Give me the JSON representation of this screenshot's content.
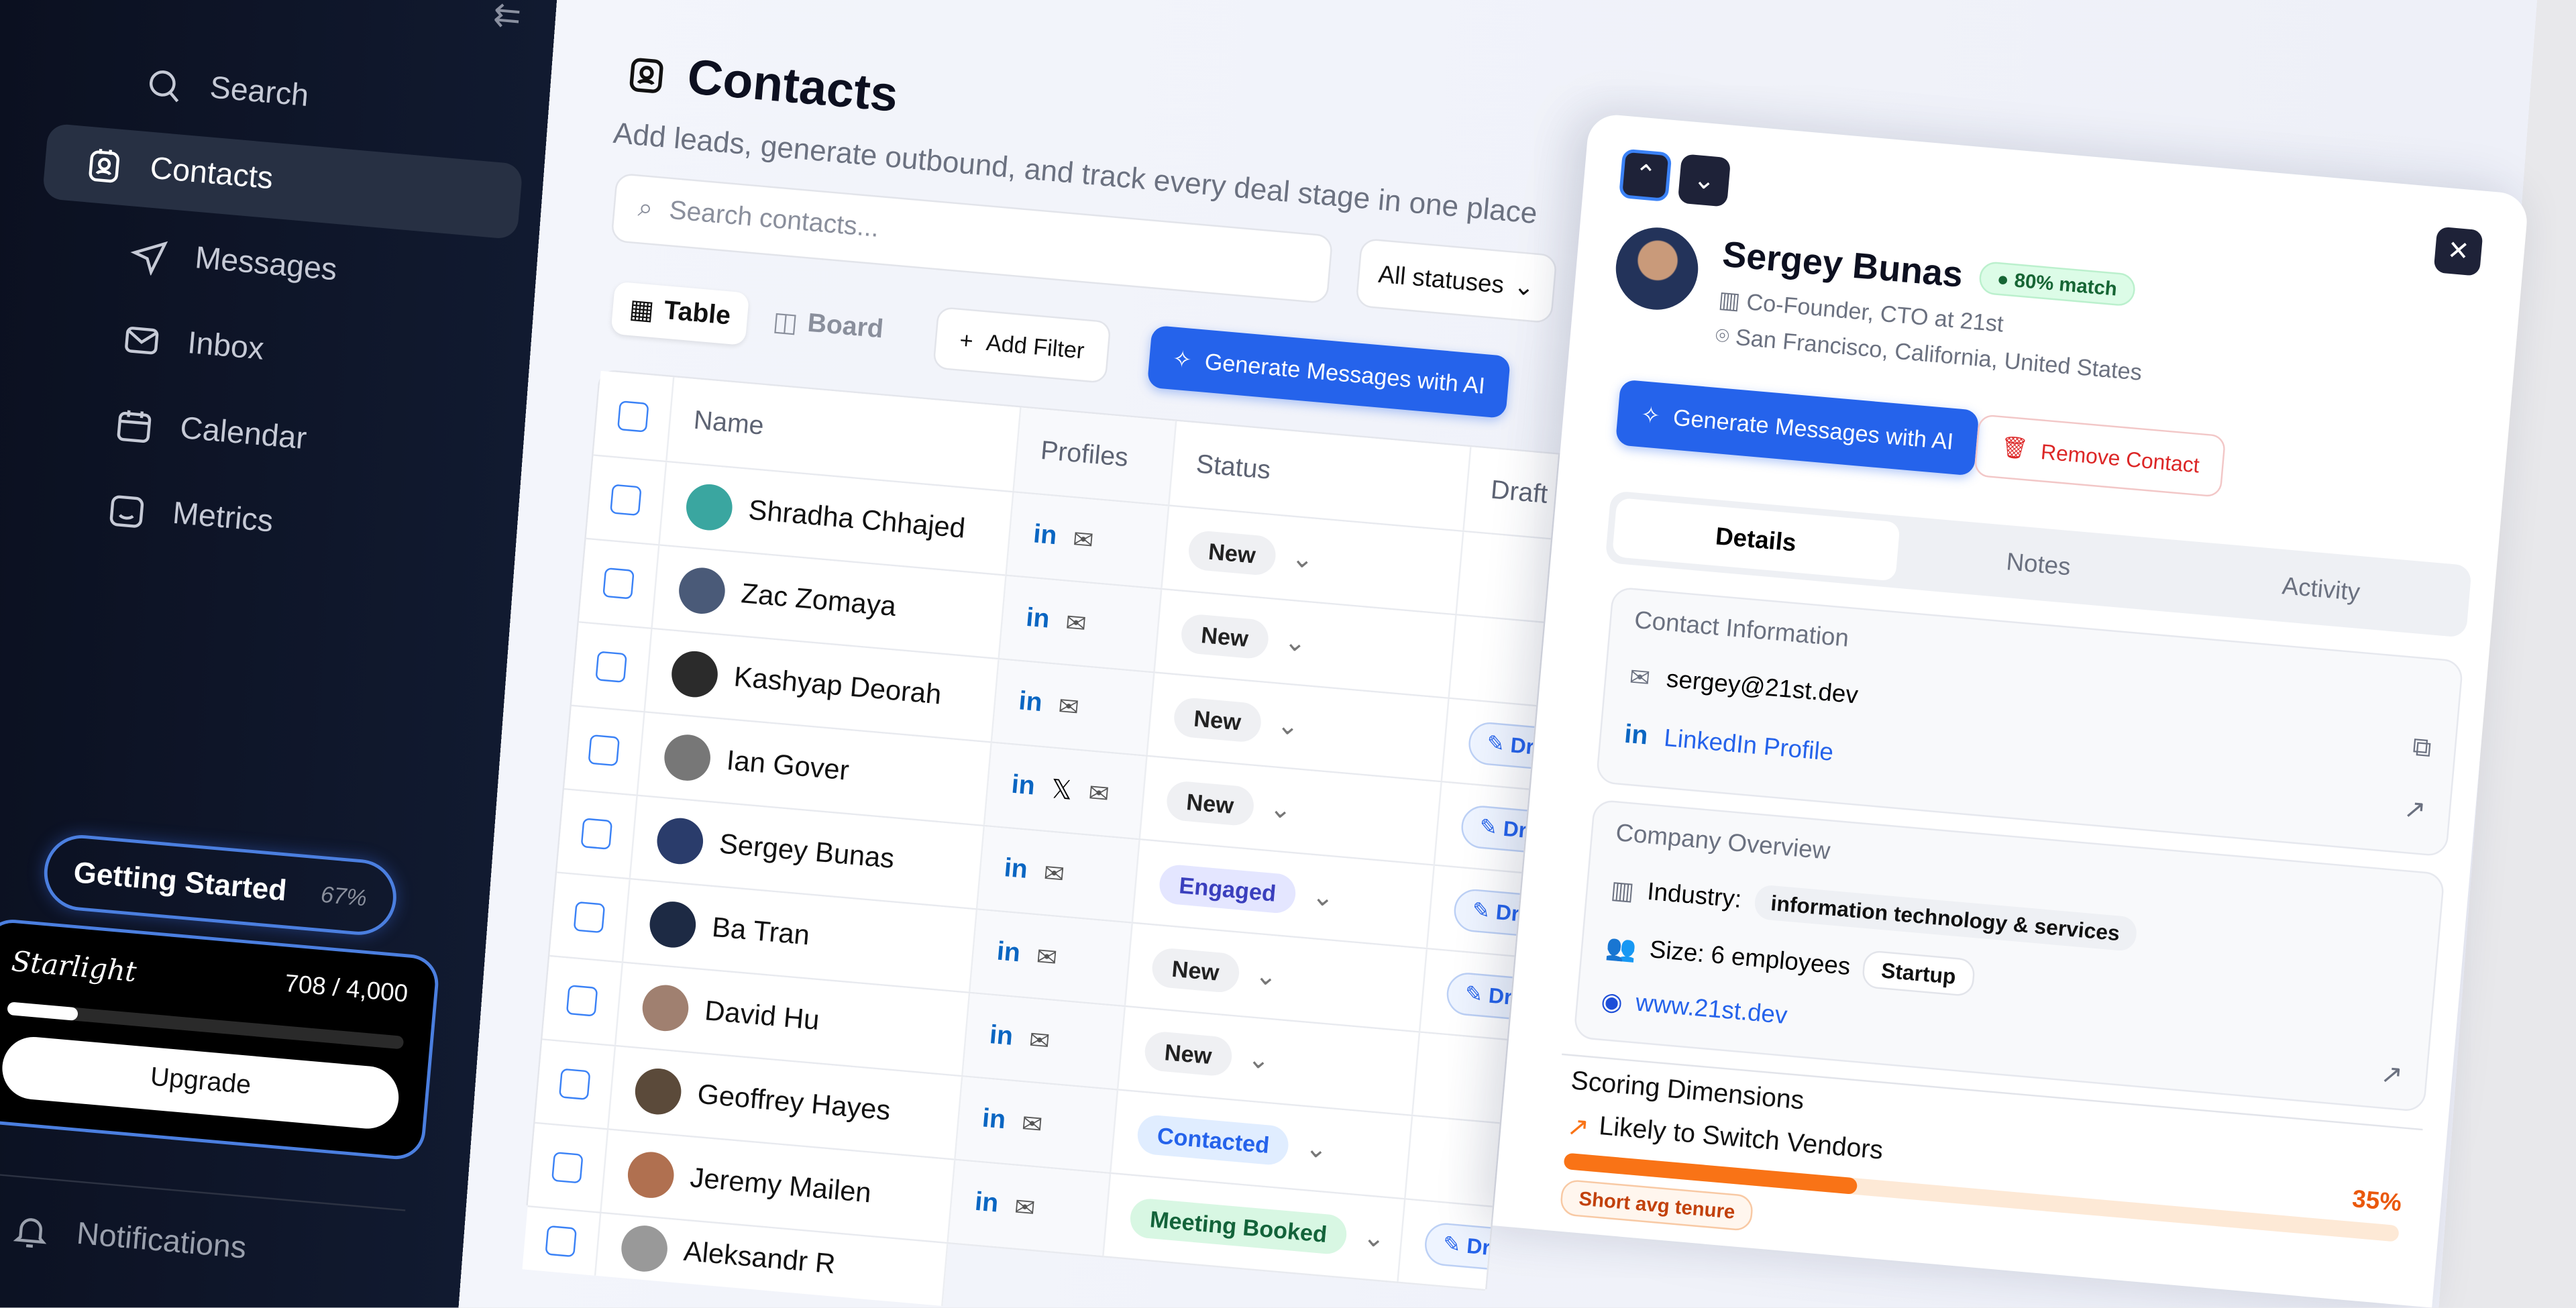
{
  "sidebar": {
    "items": [
      {
        "label": "Search",
        "icon": "search-icon"
      },
      {
        "label": "Contacts",
        "icon": "contacts-icon",
        "active": true
      },
      {
        "label": "Messages",
        "icon": "send-icon"
      },
      {
        "label": "Inbox",
        "icon": "mail-icon"
      },
      {
        "label": "Calendar",
        "icon": "calendar-icon"
      },
      {
        "label": "Metrics",
        "icon": "metrics-icon"
      }
    ],
    "getting_started": {
      "label": "Getting Started",
      "percent": "67%"
    },
    "plan": {
      "name": "Starlight",
      "usage": "708 / 4,000",
      "used": 708,
      "limit": 4000,
      "upgrade": "Upgrade"
    },
    "notifications": "Notifications"
  },
  "header": {
    "title": "Contacts",
    "subtitle": "Add leads, generate outbound, and track every deal stage in one place"
  },
  "toolbar": {
    "search_placeholder": "Search contacts...",
    "status_filter": "All statuses",
    "view_table": "Table",
    "view_board": "Board",
    "add_filter": "Add Filter",
    "generate": "Generate Messages with AI"
  },
  "table": {
    "columns": [
      "Name",
      "Profiles",
      "Status",
      "Draft"
    ],
    "rows": [
      {
        "name": "Shradha Chhajed",
        "profiles": [
          "linkedin",
          "email"
        ],
        "status": "New",
        "draft": "",
        "avatar": "#3aa6a0"
      },
      {
        "name": "Zac Zomaya",
        "profiles": [
          "linkedin",
          "email"
        ],
        "status": "New",
        "draft": "",
        "avatar": "#4a5a78"
      },
      {
        "name": "Kashyap Deorah",
        "profiles": [
          "linkedin",
          "email"
        ],
        "status": "New",
        "draft": "Draft",
        "avatar": "#2b2b2b"
      },
      {
        "name": "Ian Gover",
        "profiles": [
          "linkedin",
          "x",
          "email"
        ],
        "status": "New",
        "draft": "Draft",
        "avatar": "#777"
      },
      {
        "name": "Sergey Bunas",
        "profiles": [
          "linkedin",
          "email"
        ],
        "status": "Engaged",
        "draft": "Draft",
        "avatar": "#2a3c6b"
      },
      {
        "name": "Ba Tran",
        "profiles": [
          "linkedin",
          "email"
        ],
        "status": "New",
        "draft": "Draft",
        "avatar": "#1d2a44"
      },
      {
        "name": "David Hu",
        "profiles": [
          "linkedin",
          "email"
        ],
        "status": "New",
        "draft": "",
        "avatar": "#a08070"
      },
      {
        "name": "Geoffrey Hayes",
        "profiles": [
          "linkedin",
          "email"
        ],
        "status": "Contacted",
        "draft": "",
        "avatar": "#5b4a3a"
      },
      {
        "name": "Jeremy Mailen",
        "profiles": [
          "linkedin",
          "email"
        ],
        "status": "Meeting Booked",
        "draft": "Draft",
        "avatar": "#b07050"
      },
      {
        "name": "Aleksandr R",
        "profiles": [],
        "status": "",
        "draft": "",
        "avatar": "#999"
      }
    ]
  },
  "status_colors": {
    "New": [
      "#eff0f3",
      "#222"
    ],
    "Engaged": [
      "#e4e6ff",
      "#3a3fbd"
    ],
    "Contacted": [
      "#e0edff",
      "#2563eb"
    ],
    "Meeting Booked": [
      "#d8f7e3",
      "#13633a"
    ]
  },
  "detail": {
    "name": "Sergey Bunas",
    "match": "80% match",
    "role": "Co-Founder, CTO at 21st",
    "location": "San Francisco, California, United States",
    "generate": "Generate Messages with AI",
    "remove": "Remove Contact",
    "tabs": [
      "Details",
      "Notes",
      "Activity"
    ],
    "contact": {
      "heading": "Contact Information",
      "email": "sergey@21st.dev",
      "linkedin": "LinkedIn Profile"
    },
    "company": {
      "heading": "Company Overview",
      "industry_label": "Industry:",
      "industry": "information technology & services",
      "size": "Size: 6 employees",
      "stage": "Startup",
      "website": "www.21st.dev"
    },
    "scoring": {
      "heading": "Scoring Dimensions",
      "dimension": "Likely to Switch Vendors",
      "percent": "35%",
      "value": 35,
      "chips": [
        "Short avg tenure"
      ]
    }
  },
  "colors": {
    "accent": "#2563eb",
    "orange": "#f97316",
    "sidebar": "#0b1020"
  }
}
